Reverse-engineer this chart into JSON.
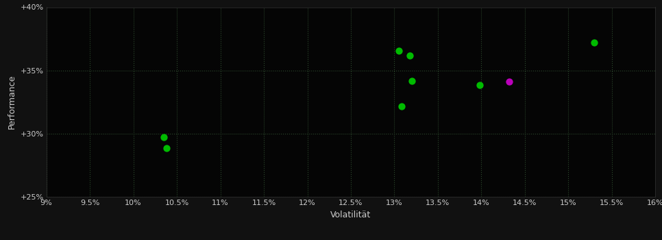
{
  "background_color": "#111111",
  "plot_bg_color": "#050505",
  "grid_color": "#2d4a2d",
  "text_color": "#cccccc",
  "xlabel": "Volatilität",
  "ylabel": "Performance",
  "xlim": [
    0.09,
    0.16
  ],
  "ylim": [
    0.25,
    0.4
  ],
  "xticks": [
    0.09,
    0.095,
    0.1,
    0.105,
    0.11,
    0.115,
    0.12,
    0.125,
    0.13,
    0.135,
    0.14,
    0.145,
    0.15,
    0.155,
    0.16
  ],
  "yticks": [
    0.25,
    0.3,
    0.35,
    0.4
  ],
  "ytick_labels": [
    "+25%",
    "+30%",
    "+35%",
    "+40%"
  ],
  "xtick_labels": [
    "9%",
    "9.5%",
    "10%",
    "10.5%",
    "11%",
    "11.5%",
    "12%",
    "12.5%",
    "13%",
    "13.5%",
    "14%",
    "14.5%",
    "15%",
    "15.5%",
    "16%"
  ],
  "green_points": [
    [
      0.1035,
      0.297
    ],
    [
      0.1038,
      0.2885
    ],
    [
      0.1305,
      0.3655
    ],
    [
      0.1318,
      0.362
    ],
    [
      0.132,
      0.3415
    ],
    [
      0.1308,
      0.3215
    ],
    [
      0.1398,
      0.3385
    ],
    [
      0.153,
      0.372
    ]
  ],
  "magenta_points": [
    [
      0.1432,
      0.341
    ]
  ],
  "green_color": "#00bb00",
  "magenta_color": "#bb00bb",
  "marker_size": 55,
  "font_size_ticks": 8,
  "font_size_label": 9
}
